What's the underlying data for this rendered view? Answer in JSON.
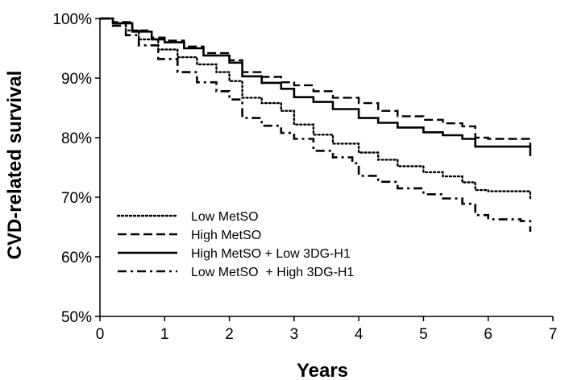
{
  "chart_data": {
    "type": "line",
    "title": "",
    "xlabel": "Years",
    "ylabel": "CVD-related survival",
    "xlim": [
      0,
      7
    ],
    "ylim": [
      50,
      100
    ],
    "x_ticks": [
      0,
      1,
      2,
      3,
      4,
      5,
      6,
      7
    ],
    "y_ticks": [
      50,
      60,
      70,
      80,
      90,
      100
    ],
    "x_tick_labels": [
      "0",
      "1",
      "2",
      "3",
      "4",
      "5",
      "6",
      "7"
    ],
    "y_tick_labels": [
      "50%",
      "60%",
      "70%",
      "80%",
      "90%",
      "100%"
    ],
    "grid": false,
    "legend_position": "bottom-left",
    "series": [
      {
        "name": "Low MetSO",
        "style": "dotted",
        "points": [
          [
            0,
            100
          ],
          [
            0.2,
            99.2
          ],
          [
            0.4,
            98
          ],
          [
            0.6,
            96.5
          ],
          [
            0.9,
            94.8
          ],
          [
            1.2,
            93.5
          ],
          [
            1.5,
            92.3
          ],
          [
            1.8,
            91
          ],
          [
            2.0,
            89.5
          ],
          [
            2.2,
            86.7
          ],
          [
            2.5,
            85.8
          ],
          [
            2.8,
            84.5
          ],
          [
            3.0,
            82.2
          ],
          [
            3.3,
            80.5
          ],
          [
            3.6,
            79
          ],
          [
            4.0,
            77.5
          ],
          [
            4.3,
            76.3
          ],
          [
            4.6,
            75.2
          ],
          [
            5.0,
            74.2
          ],
          [
            5.3,
            73.5
          ],
          [
            5.6,
            72.5
          ],
          [
            5.8,
            71.2
          ],
          [
            6.0,
            71
          ],
          [
            6.6,
            71
          ],
          [
            6.65,
            69.5
          ]
        ]
      },
      {
        "name": "High MetSO",
        "style": "dashed",
        "points": [
          [
            0,
            100
          ],
          [
            0.2,
            99.4
          ],
          [
            0.5,
            98
          ],
          [
            0.8,
            96.8
          ],
          [
            1.0,
            96.3
          ],
          [
            1.3,
            95.3
          ],
          [
            1.6,
            94.2
          ],
          [
            2.0,
            93
          ],
          [
            2.2,
            91
          ],
          [
            2.5,
            90.2
          ],
          [
            2.8,
            89.3
          ],
          [
            3.0,
            88.8
          ],
          [
            3.3,
            87.8
          ],
          [
            3.6,
            86.7
          ],
          [
            4.0,
            85.8
          ],
          [
            4.3,
            84.5
          ],
          [
            4.6,
            83.6
          ],
          [
            5.0,
            83
          ],
          [
            5.3,
            82.4
          ],
          [
            5.6,
            81.9
          ],
          [
            5.8,
            80
          ],
          [
            6.0,
            79.8
          ],
          [
            6.55,
            79.8
          ],
          [
            6.65,
            78.6
          ]
        ]
      },
      {
        "name": "High MetSO + Low 3DG-H1",
        "style": "solid",
        "points": [
          [
            0,
            100
          ],
          [
            0.2,
            99.2
          ],
          [
            0.5,
            97.8
          ],
          [
            0.8,
            96.5
          ],
          [
            1.0,
            96
          ],
          [
            1.3,
            95
          ],
          [
            1.6,
            93.8
          ],
          [
            2.0,
            92.6
          ],
          [
            2.2,
            90.3
          ],
          [
            2.5,
            89.2
          ],
          [
            2.8,
            88.2
          ],
          [
            3.0,
            86.8
          ],
          [
            3.3,
            86
          ],
          [
            3.6,
            84.8
          ],
          [
            4.0,
            83.3
          ],
          [
            4.3,
            82.5
          ],
          [
            4.6,
            81.7
          ],
          [
            5.0,
            80.9
          ],
          [
            5.3,
            80.4
          ],
          [
            5.6,
            79.8
          ],
          [
            5.8,
            78.5
          ],
          [
            6.0,
            78.5
          ],
          [
            6.55,
            78.5
          ],
          [
            6.65,
            76.9
          ]
        ]
      },
      {
        "name": "Low MetSO  + High 3DG-H1",
        "style": "dashdot",
        "points": [
          [
            0,
            100
          ],
          [
            0.2,
            98.8
          ],
          [
            0.4,
            97.2
          ],
          [
            0.6,
            95.5
          ],
          [
            0.9,
            93.2
          ],
          [
            1.2,
            91
          ],
          [
            1.5,
            89.3
          ],
          [
            1.8,
            87.8
          ],
          [
            2.0,
            86.4
          ],
          [
            2.2,
            83.3
          ],
          [
            2.5,
            82
          ],
          [
            2.8,
            80.8
          ],
          [
            3.0,
            79.8
          ],
          [
            3.3,
            77.8
          ],
          [
            3.6,
            76.7
          ],
          [
            3.9,
            75.7
          ],
          [
            4.0,
            73.6
          ],
          [
            4.3,
            72.6
          ],
          [
            4.6,
            71.5
          ],
          [
            5.0,
            70.5
          ],
          [
            5.3,
            69.8
          ],
          [
            5.6,
            68.9
          ],
          [
            5.8,
            67
          ],
          [
            6.0,
            66.3
          ],
          [
            6.5,
            66
          ],
          [
            6.65,
            64.2
          ]
        ]
      }
    ]
  }
}
